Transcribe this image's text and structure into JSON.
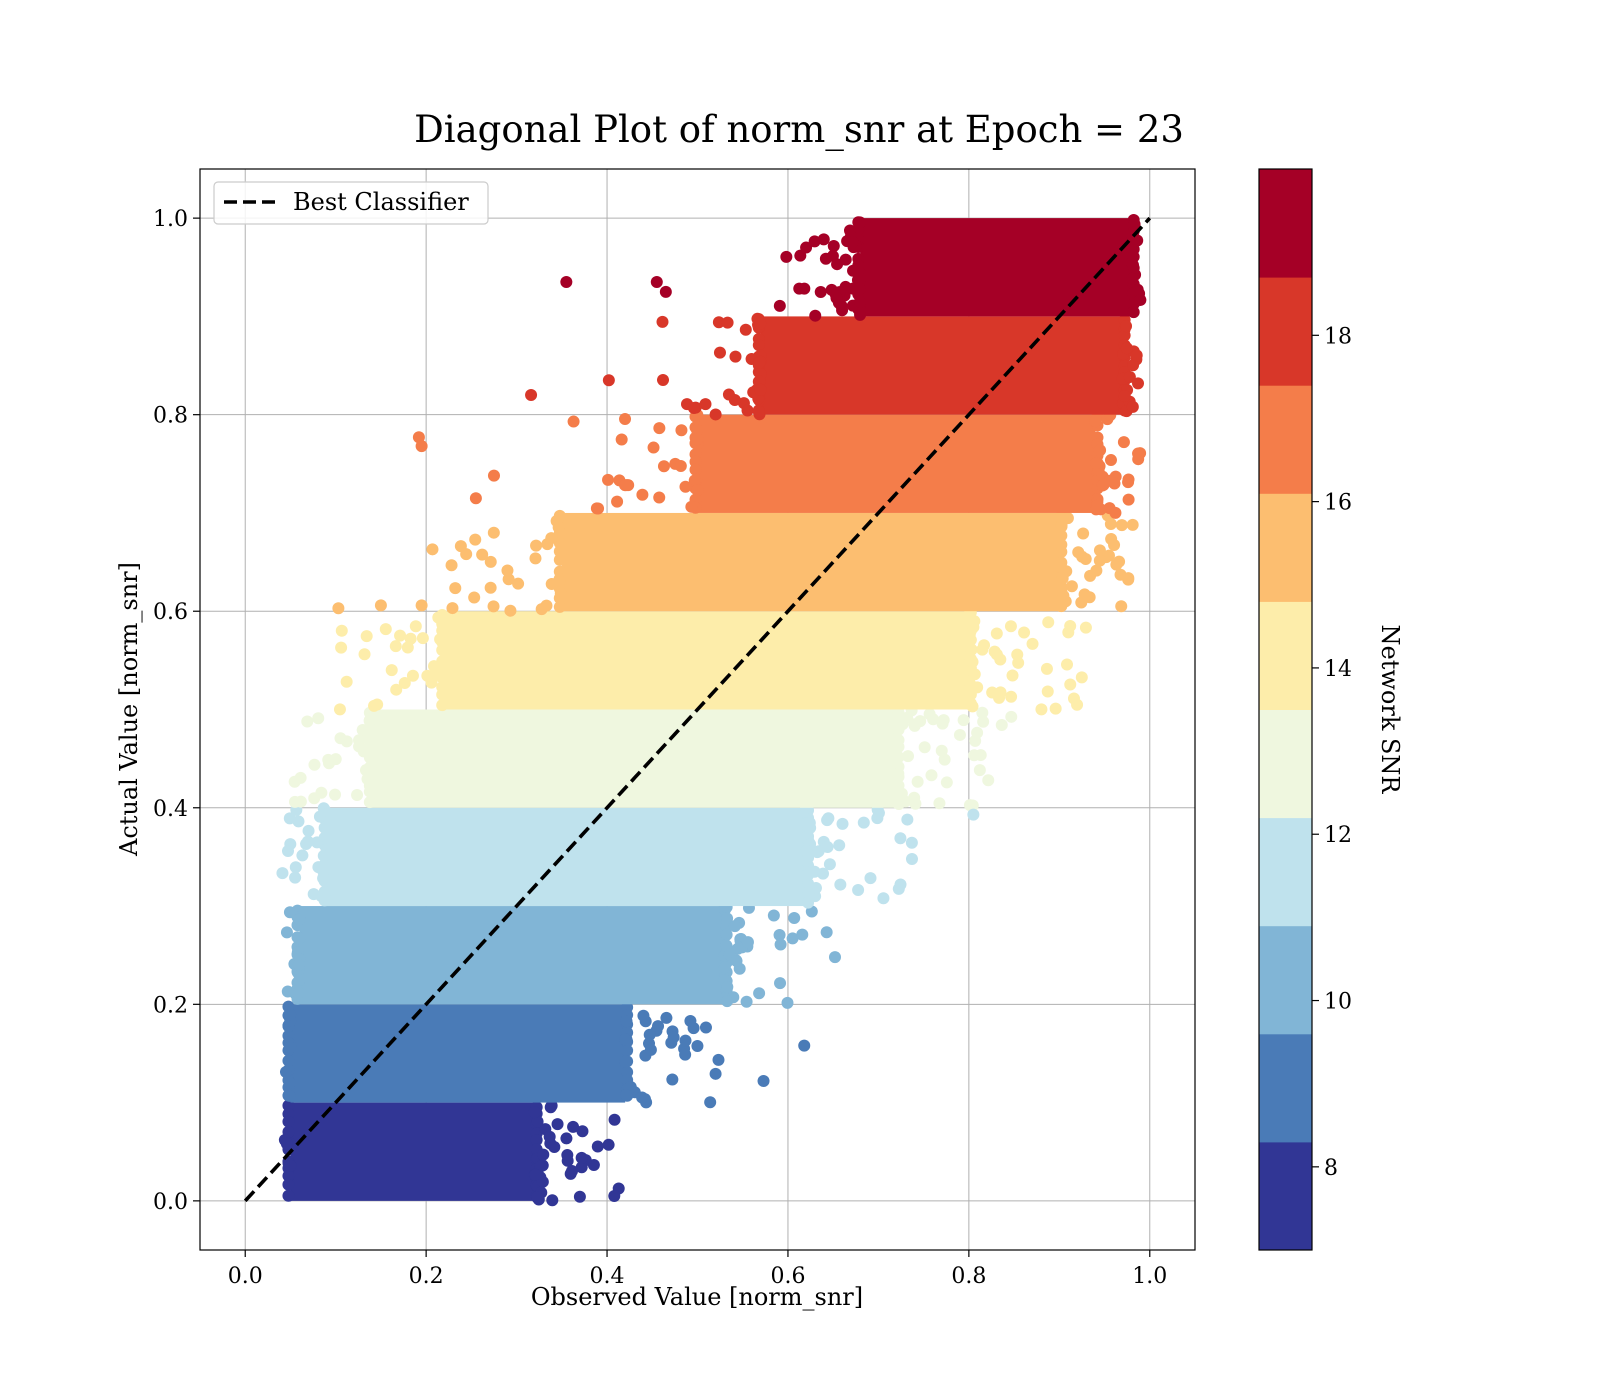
{
  "chart_data": {
    "type": "scatter",
    "title": "Diagonal Plot of norm_snr at Epoch = 23",
    "xlabel": "Observed Value [norm_snr]",
    "ylabel": "Actual Value [norm_snr]",
    "xlim": [
      -0.05,
      1.05
    ],
    "ylim": [
      -0.05,
      1.05
    ],
    "xticks": [
      "0.0",
      "0.2",
      "0.4",
      "0.6",
      "0.8",
      "1.0"
    ],
    "yticks": [
      "0.0",
      "0.2",
      "0.4",
      "0.6",
      "0.8",
      "1.0"
    ],
    "grid": true,
    "legend": {
      "position": "top-left",
      "entries": [
        "Best Classifier"
      ]
    },
    "reference_line": {
      "name": "Best Classifier",
      "style": "dashed",
      "color": "#000000",
      "x": [
        0,
        1
      ],
      "y": [
        0,
        1
      ]
    },
    "colorbar": {
      "label": "Network SNR",
      "range": [
        7,
        20
      ],
      "ticks": [
        8,
        10,
        12,
        14,
        16,
        18
      ],
      "bin_colors": [
        "#313695",
        "#4a7bb7",
        "#81b5d6",
        "#bfe2ed",
        "#eff7df",
        "#fdedaa",
        "#fcbe70",
        "#f47d4a",
        "#d83729",
        "#a50026"
      ]
    },
    "bands": [
      {
        "y_range": [
          0.0,
          0.1
        ],
        "core_x_range": [
          0.05,
          0.32
        ],
        "snr": 7.65
      },
      {
        "y_range": [
          0.1,
          0.2
        ],
        "core_x_range": [
          0.05,
          0.42
        ],
        "snr": 8.95
      },
      {
        "y_range": [
          0.2,
          0.3
        ],
        "core_x_range": [
          0.06,
          0.53
        ],
        "snr": 10.25
      },
      {
        "y_range": [
          0.3,
          0.4
        ],
        "core_x_range": [
          0.09,
          0.62
        ],
        "snr": 11.55
      },
      {
        "y_range": [
          0.4,
          0.5
        ],
        "core_x_range": [
          0.14,
          0.72
        ],
        "snr": 12.85
      },
      {
        "y_range": [
          0.5,
          0.6
        ],
        "core_x_range": [
          0.22,
          0.8
        ],
        "snr": 14.15
      },
      {
        "y_range": [
          0.6,
          0.7
        ],
        "core_x_range": [
          0.35,
          0.9
        ],
        "snr": 15.45
      },
      {
        "y_range": [
          0.7,
          0.8
        ],
        "core_x_range": [
          0.5,
          0.94
        ],
        "snr": 16.75
      },
      {
        "y_range": [
          0.8,
          0.9
        ],
        "core_x_range": [
          0.57,
          0.97
        ],
        "snr": 18.05
      },
      {
        "y_range": [
          0.9,
          1.0
        ],
        "core_x_range": [
          0.68,
          0.98
        ],
        "snr": 19.35
      }
    ],
    "outliers": [
      {
        "x": 0.355,
        "y": 0.935
      },
      {
        "x": 0.455,
        "y": 0.935
      },
      {
        "x": 0.465,
        "y": 0.925
      },
      {
        "x": 0.316,
        "y": 0.82
      },
      {
        "x": 0.402,
        "y": 0.835
      },
      {
        "x": 0.363,
        "y": 0.793
      },
      {
        "x": 0.192,
        "y": 0.777
      },
      {
        "x": 0.195,
        "y": 0.768
      },
      {
        "x": 0.255,
        "y": 0.715
      },
      {
        "x": 0.275,
        "y": 0.738
      },
      {
        "x": 0.103,
        "y": 0.603
      },
      {
        "x": 0.15,
        "y": 0.606
      },
      {
        "x": 0.195,
        "y": 0.606
      },
      {
        "x": 0.207,
        "y": 0.663
      },
      {
        "x": 0.106,
        "y": 0.563
      },
      {
        "x": 0.055,
        "y": 0.406
      },
      {
        "x": 0.805,
        "y": 0.393
      },
      {
        "x": 0.732,
        "y": 0.388
      },
      {
        "x": 0.618,
        "y": 0.158
      },
      {
        "x": 0.573,
        "y": 0.122
      },
      {
        "x": 0.408,
        "y": 0.005
      },
      {
        "x": 0.652,
        "y": 0.248
      },
      {
        "x": 0.912,
        "y": 0.585
      }
    ]
  }
}
